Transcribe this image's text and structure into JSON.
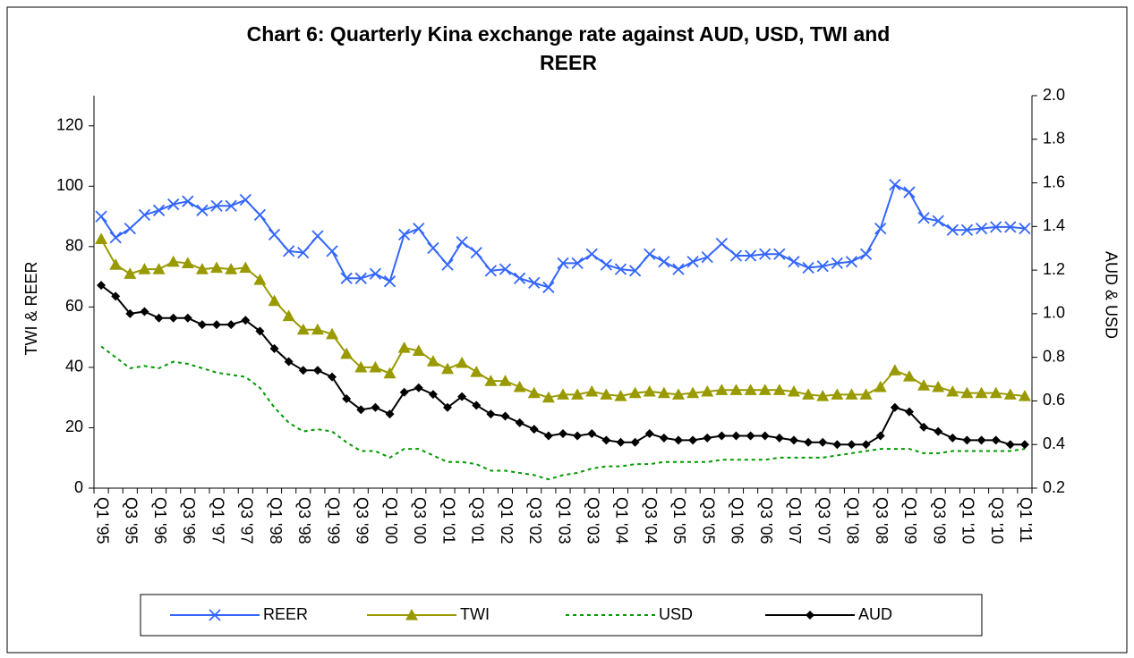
{
  "chart_data": {
    "type": "line",
    "title": "Chart 6: Quarterly Kina exchange rate against AUD, USD, TWI and REER",
    "ylabel": "TWI & REER",
    "y2label": "AUD & USD",
    "categories": [
      "Q1 '95",
      null,
      "Q3 '95",
      null,
      "Q1 '96",
      null,
      "Q3 '96",
      null,
      "Q1 '97",
      null,
      "Q3 '97",
      null,
      "Q1 '98",
      null,
      "Q3 '98",
      null,
      "Q1 '99",
      null,
      "Q3 '99",
      null,
      "Q1 '00",
      null,
      "Q3 '00",
      null,
      "Q1 '01",
      null,
      "Q3 '01",
      null,
      "Q1 '02",
      null,
      "Q3 '02",
      null,
      "Q1 '03",
      null,
      "Q3 '03",
      null,
      "Q1 '04",
      null,
      "Q3 '04",
      null,
      "Q1 '05",
      null,
      "Q3 '05",
      null,
      "Q1 '06",
      null,
      "Q3 '06",
      null,
      "Q1 '07",
      null,
      "Q3 '07",
      null,
      "Q1 '08",
      null,
      "Q3 '08",
      null,
      "Q1 '09",
      null,
      "Q3 '09",
      null,
      "Q1 '10",
      null,
      "Q3 '10",
      null,
      "Q1 '11"
    ],
    "series": [
      {
        "name": "REER",
        "color": "#3366ff",
        "marker": "x",
        "axis": "y",
        "values": [
          90,
          83,
          86,
          90.5,
          92,
          94,
          95,
          92,
          93.5,
          93.5,
          95.5,
          90.5,
          84,
          78.5,
          78,
          83.5,
          78.5,
          69.5,
          69.5,
          71,
          68.5,
          84,
          86,
          79.5,
          74,
          81.5,
          78,
          72,
          72.5,
          69.5,
          68,
          66.5,
          74.5,
          74.5,
          77.5,
          74,
          72.5,
          72,
          77.5,
          75,
          72.5,
          75,
          76.5,
          81,
          77,
          77,
          77.5,
          77.5,
          75,
          73,
          73.5,
          74.5,
          75,
          77.5,
          86,
          100.5,
          98,
          89.5,
          88.5,
          85.5,
          85.5,
          86,
          86.5,
          86.5,
          86
        ]
      },
      {
        "name": "TWI",
        "color": "#999900",
        "marker": "triangle",
        "axis": "y",
        "values": [
          82.5,
          74,
          71,
          72.5,
          72.5,
          75,
          74.5,
          72.5,
          73,
          72.5,
          73,
          69,
          62,
          57,
          52.5,
          52.5,
          51,
          44.5,
          40,
          40,
          38,
          46.5,
          45.5,
          42,
          39.5,
          41.5,
          38.5,
          35.5,
          35.5,
          33.5,
          31.5,
          30,
          31,
          31,
          32,
          31,
          30.5,
          31.5,
          32,
          31.5,
          31,
          31.5,
          32,
          32.5,
          32.5,
          32.5,
          32.5,
          32.5,
          32,
          31,
          30.5,
          31,
          31,
          31,
          33.5,
          39,
          37,
          34,
          33.5,
          32,
          31.5,
          31.5,
          31.5,
          31,
          30.5
        ]
      },
      {
        "name": "USD",
        "color": "#009900",
        "marker": "none",
        "dashed": true,
        "axis": "y2",
        "values": [
          0.85,
          0.8,
          0.75,
          0.76,
          0.75,
          0.78,
          0.77,
          0.75,
          0.73,
          0.72,
          0.71,
          0.66,
          0.57,
          0.5,
          0.46,
          0.47,
          0.46,
          0.41,
          0.37,
          0.37,
          0.34,
          0.38,
          0.38,
          0.35,
          0.32,
          0.32,
          0.31,
          0.28,
          0.28,
          0.27,
          0.26,
          0.24,
          0.26,
          0.27,
          0.29,
          0.3,
          0.3,
          0.31,
          0.31,
          0.32,
          0.32,
          0.32,
          0.32,
          0.33,
          0.33,
          0.33,
          0.33,
          0.34,
          0.34,
          0.34,
          0.34,
          0.35,
          0.36,
          0.37,
          0.38,
          0.38,
          0.38,
          0.36,
          0.36,
          0.37,
          0.37,
          0.37,
          0.37,
          0.37,
          0.38
        ]
      },
      {
        "name": "AUD",
        "color": "#000000",
        "marker": "diamond",
        "axis": "y2",
        "values": [
          1.13,
          1.08,
          1.0,
          1.01,
          0.98,
          0.98,
          0.98,
          0.95,
          0.95,
          0.95,
          0.97,
          0.92,
          0.84,
          0.78,
          0.74,
          0.74,
          0.71,
          0.61,
          0.56,
          0.57,
          0.54,
          0.64,
          0.66,
          0.63,
          0.57,
          0.62,
          0.58,
          0.54,
          0.53,
          0.5,
          0.47,
          0.44,
          0.45,
          0.44,
          0.45,
          0.42,
          0.41,
          0.41,
          0.45,
          0.43,
          0.42,
          0.42,
          0.43,
          0.44,
          0.44,
          0.44,
          0.44,
          0.43,
          0.42,
          0.41,
          0.41,
          0.4,
          0.4,
          0.4,
          0.44,
          0.57,
          0.55,
          0.48,
          0.46,
          0.43,
          0.42,
          0.42,
          0.42,
          0.4,
          0.4
        ]
      }
    ],
    "ylim": [
      0,
      130
    ],
    "yticks": [
      0,
      20,
      40,
      60,
      80,
      100,
      120
    ],
    "y2lim": [
      0.2,
      2.0
    ],
    "y2ticks": [
      0.2,
      0.4,
      0.6,
      0.8,
      {
        "value": 1,
        "label": "1.0"
      },
      1.2,
      1.4,
      1.6,
      1.8,
      {
        "value": 2,
        "label": "2.0"
      }
    ],
    "grid": false,
    "legend": "bottom"
  }
}
